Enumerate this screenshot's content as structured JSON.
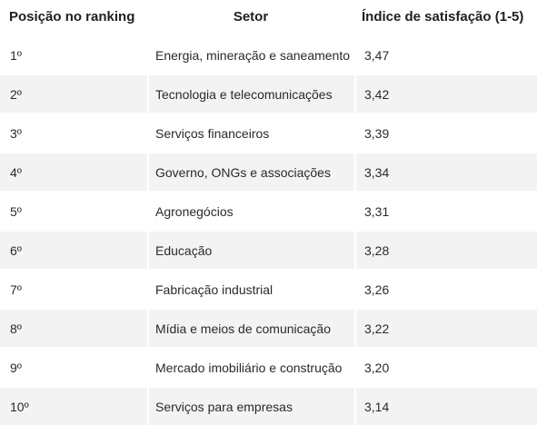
{
  "table": {
    "headers": {
      "position": "Posição no ranking",
      "sector": "Setor",
      "index": "Índice de satisfação (1-5)"
    },
    "rows": [
      {
        "position": "1º",
        "sector": "Energia, mineração e saneamento",
        "index": "3,47"
      },
      {
        "position": "2º",
        "sector": "Tecnologia e telecomunicações",
        "index": "3,42"
      },
      {
        "position": "3º",
        "sector": "Serviços financeiros",
        "index": "3,39"
      },
      {
        "position": "4º",
        "sector": "Governo, ONGs e associações",
        "index": "3,34"
      },
      {
        "position": "5º",
        "sector": "Agronegócios",
        "index": "3,31"
      },
      {
        "position": "6º",
        "sector": "Educação",
        "index": "3,28"
      },
      {
        "position": "7º",
        "sector": "Fabricação industrial",
        "index": "3,26"
      },
      {
        "position": "8º",
        "sector": "Mídia e meios de comunicação",
        "index": "3,22"
      },
      {
        "position": "9º",
        "sector": "Mercado imobiliário e construção",
        "index": "3,20"
      },
      {
        "position": "10º",
        "sector": "Serviços para empresas",
        "index": "3,14"
      }
    ]
  },
  "colors": {
    "stripe": "#f3f3f3",
    "background": "#ffffff",
    "text": "#212121"
  }
}
